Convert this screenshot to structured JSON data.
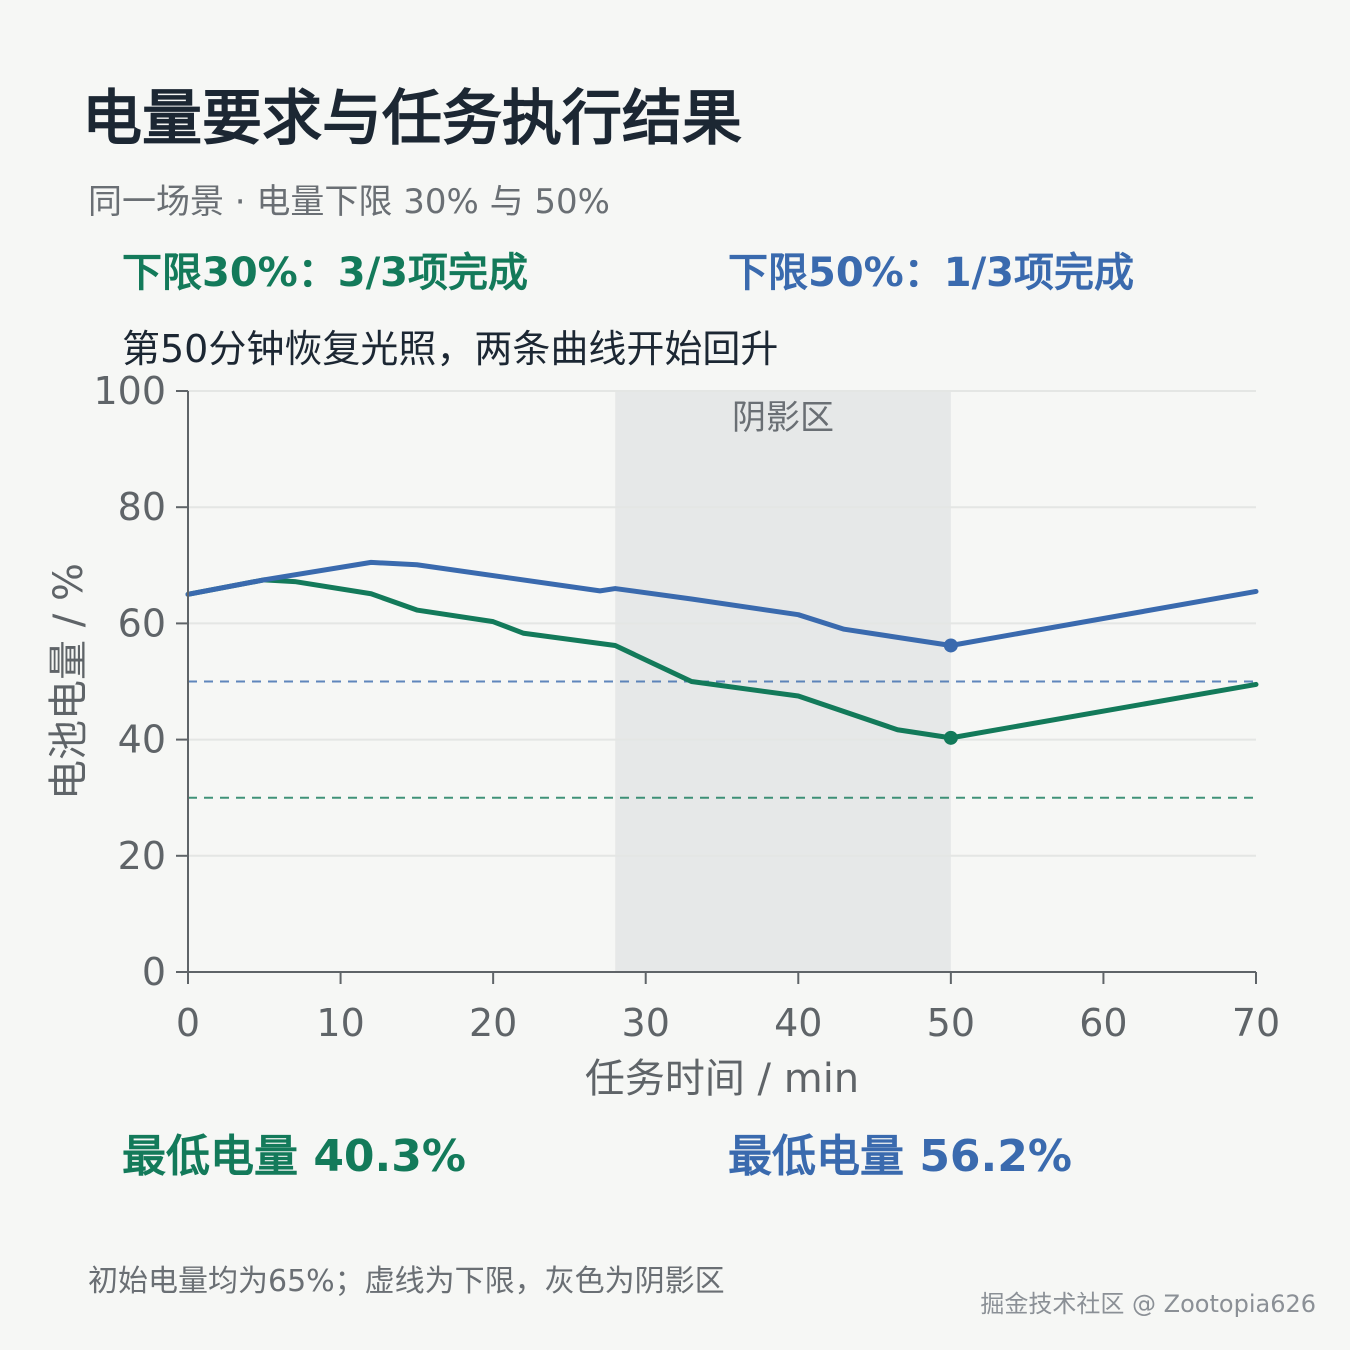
{
  "header": {
    "title": "电量要求与任务执行结果",
    "subtitle": "同一场景 · 电量下限 30% 与 50%",
    "result_30": "下限30%：3/3项完成",
    "result_50": "下限50%：1/3项完成",
    "annotation": "第50分钟恢复光照，两条曲线开始回升"
  },
  "footer": {
    "min_30": "最低电量 40.3%",
    "min_50": "最低电量 56.2%",
    "note": "初始电量均为65%；虚线为下限，灰色为阴影区",
    "watermark": "掘金技术社区 @ Zootopia626"
  },
  "colors": {
    "green": "#137a5a",
    "blue": "#3a6aae",
    "shadow": "#e6e8e8",
    "grid": "#e4e6e4",
    "axis": "#5f6468"
  },
  "chart_data": {
    "type": "line",
    "xlabel": "任务时间 / min",
    "ylabel": "电池电量 / %",
    "xlim": [
      0,
      70
    ],
    "ylim": [
      0,
      100
    ],
    "xticks": [
      0,
      10,
      20,
      30,
      40,
      50,
      60,
      70
    ],
    "yticks": [
      0,
      20,
      40,
      60,
      80,
      100
    ],
    "grid": true,
    "shaded_region": {
      "x": [
        28,
        50
      ],
      "label": "阴影区"
    },
    "thresholds": [
      {
        "value": 50,
        "series": "下限50%"
      },
      {
        "value": 30,
        "series": "下限30%"
      }
    ],
    "series": [
      {
        "name": "下限30%",
        "color": "#137a5a",
        "marker_at": 50,
        "points": [
          [
            0,
            65
          ],
          [
            5,
            67.5
          ],
          [
            7,
            67.2
          ],
          [
            12,
            65.1
          ],
          [
            15,
            62.3
          ],
          [
            20,
            60.3
          ],
          [
            22,
            58.3
          ],
          [
            28,
            56.2
          ],
          [
            33,
            50
          ],
          [
            40,
            47.5
          ],
          [
            46.5,
            41.7
          ],
          [
            50,
            40.3
          ],
          [
            70,
            49.5
          ]
        ]
      },
      {
        "name": "下限50%",
        "color": "#3a6aae",
        "marker_at": 50,
        "points": [
          [
            0,
            65
          ],
          [
            5,
            67.5
          ],
          [
            12,
            70.5
          ],
          [
            15,
            70.1
          ],
          [
            27,
            65.6
          ],
          [
            28,
            66
          ],
          [
            33,
            64.2
          ],
          [
            40,
            61.5
          ],
          [
            43,
            59
          ],
          [
            50,
            56.2
          ],
          [
            70,
            65.5
          ]
        ]
      }
    ]
  }
}
